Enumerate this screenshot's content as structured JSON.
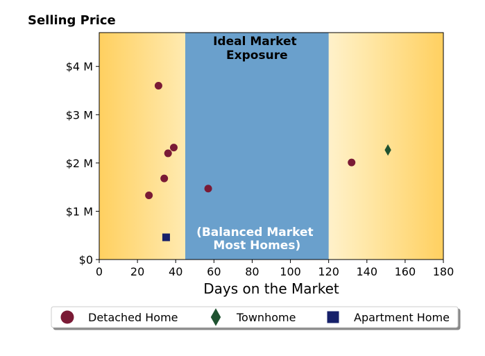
{
  "chart_data": {
    "type": "scatter",
    "title": "Selling Price",
    "xlabel": "Days on the Market",
    "ylabel": "",
    "xlim": [
      0,
      180
    ],
    "ylim": [
      0,
      4700000
    ],
    "x_ticks": [
      0,
      20,
      40,
      60,
      80,
      100,
      120,
      140,
      160,
      180
    ],
    "x_tick_labels": [
      "0",
      "20",
      "40",
      "60",
      "80",
      "100",
      "120",
      "140",
      "160",
      "180"
    ],
    "y_ticks": [
      0,
      1000000,
      2000000,
      3000000,
      4000000
    ],
    "y_tick_labels": [
      "$0",
      "$1 M",
      "$2 M",
      "$3 M",
      "$4 M"
    ],
    "grid": false,
    "legend_position": "bottom",
    "band": {
      "x_range": [
        45,
        120
      ],
      "top_label_lines": [
        "Ideal Market",
        "Exposure"
      ],
      "bottom_label_lines": [
        "(Balanced Market",
        "Most Homes)"
      ],
      "color": "#6aa0cc"
    },
    "background_gradient": {
      "edge_color": "#ffd060",
      "center_color": "#ffffff"
    },
    "series": [
      {
        "name": "Detached Home",
        "marker": "circle",
        "color": "#7a1a35",
        "points": [
          {
            "x": 26,
            "y": 1330000
          },
          {
            "x": 31,
            "y": 3600000
          },
          {
            "x": 34,
            "y": 1680000
          },
          {
            "x": 36,
            "y": 2200000
          },
          {
            "x": 39,
            "y": 2320000
          },
          {
            "x": 57,
            "y": 1470000
          },
          {
            "x": 132,
            "y": 2010000
          }
        ]
      },
      {
        "name": "Townhome",
        "marker": "diamond",
        "color": "#1f5230",
        "points": [
          {
            "x": 151,
            "y": 2270000
          }
        ]
      },
      {
        "name": "Apartment Home",
        "marker": "square",
        "color": "#16206a",
        "points": [
          {
            "x": 35,
            "y": 460000
          }
        ]
      }
    ]
  }
}
